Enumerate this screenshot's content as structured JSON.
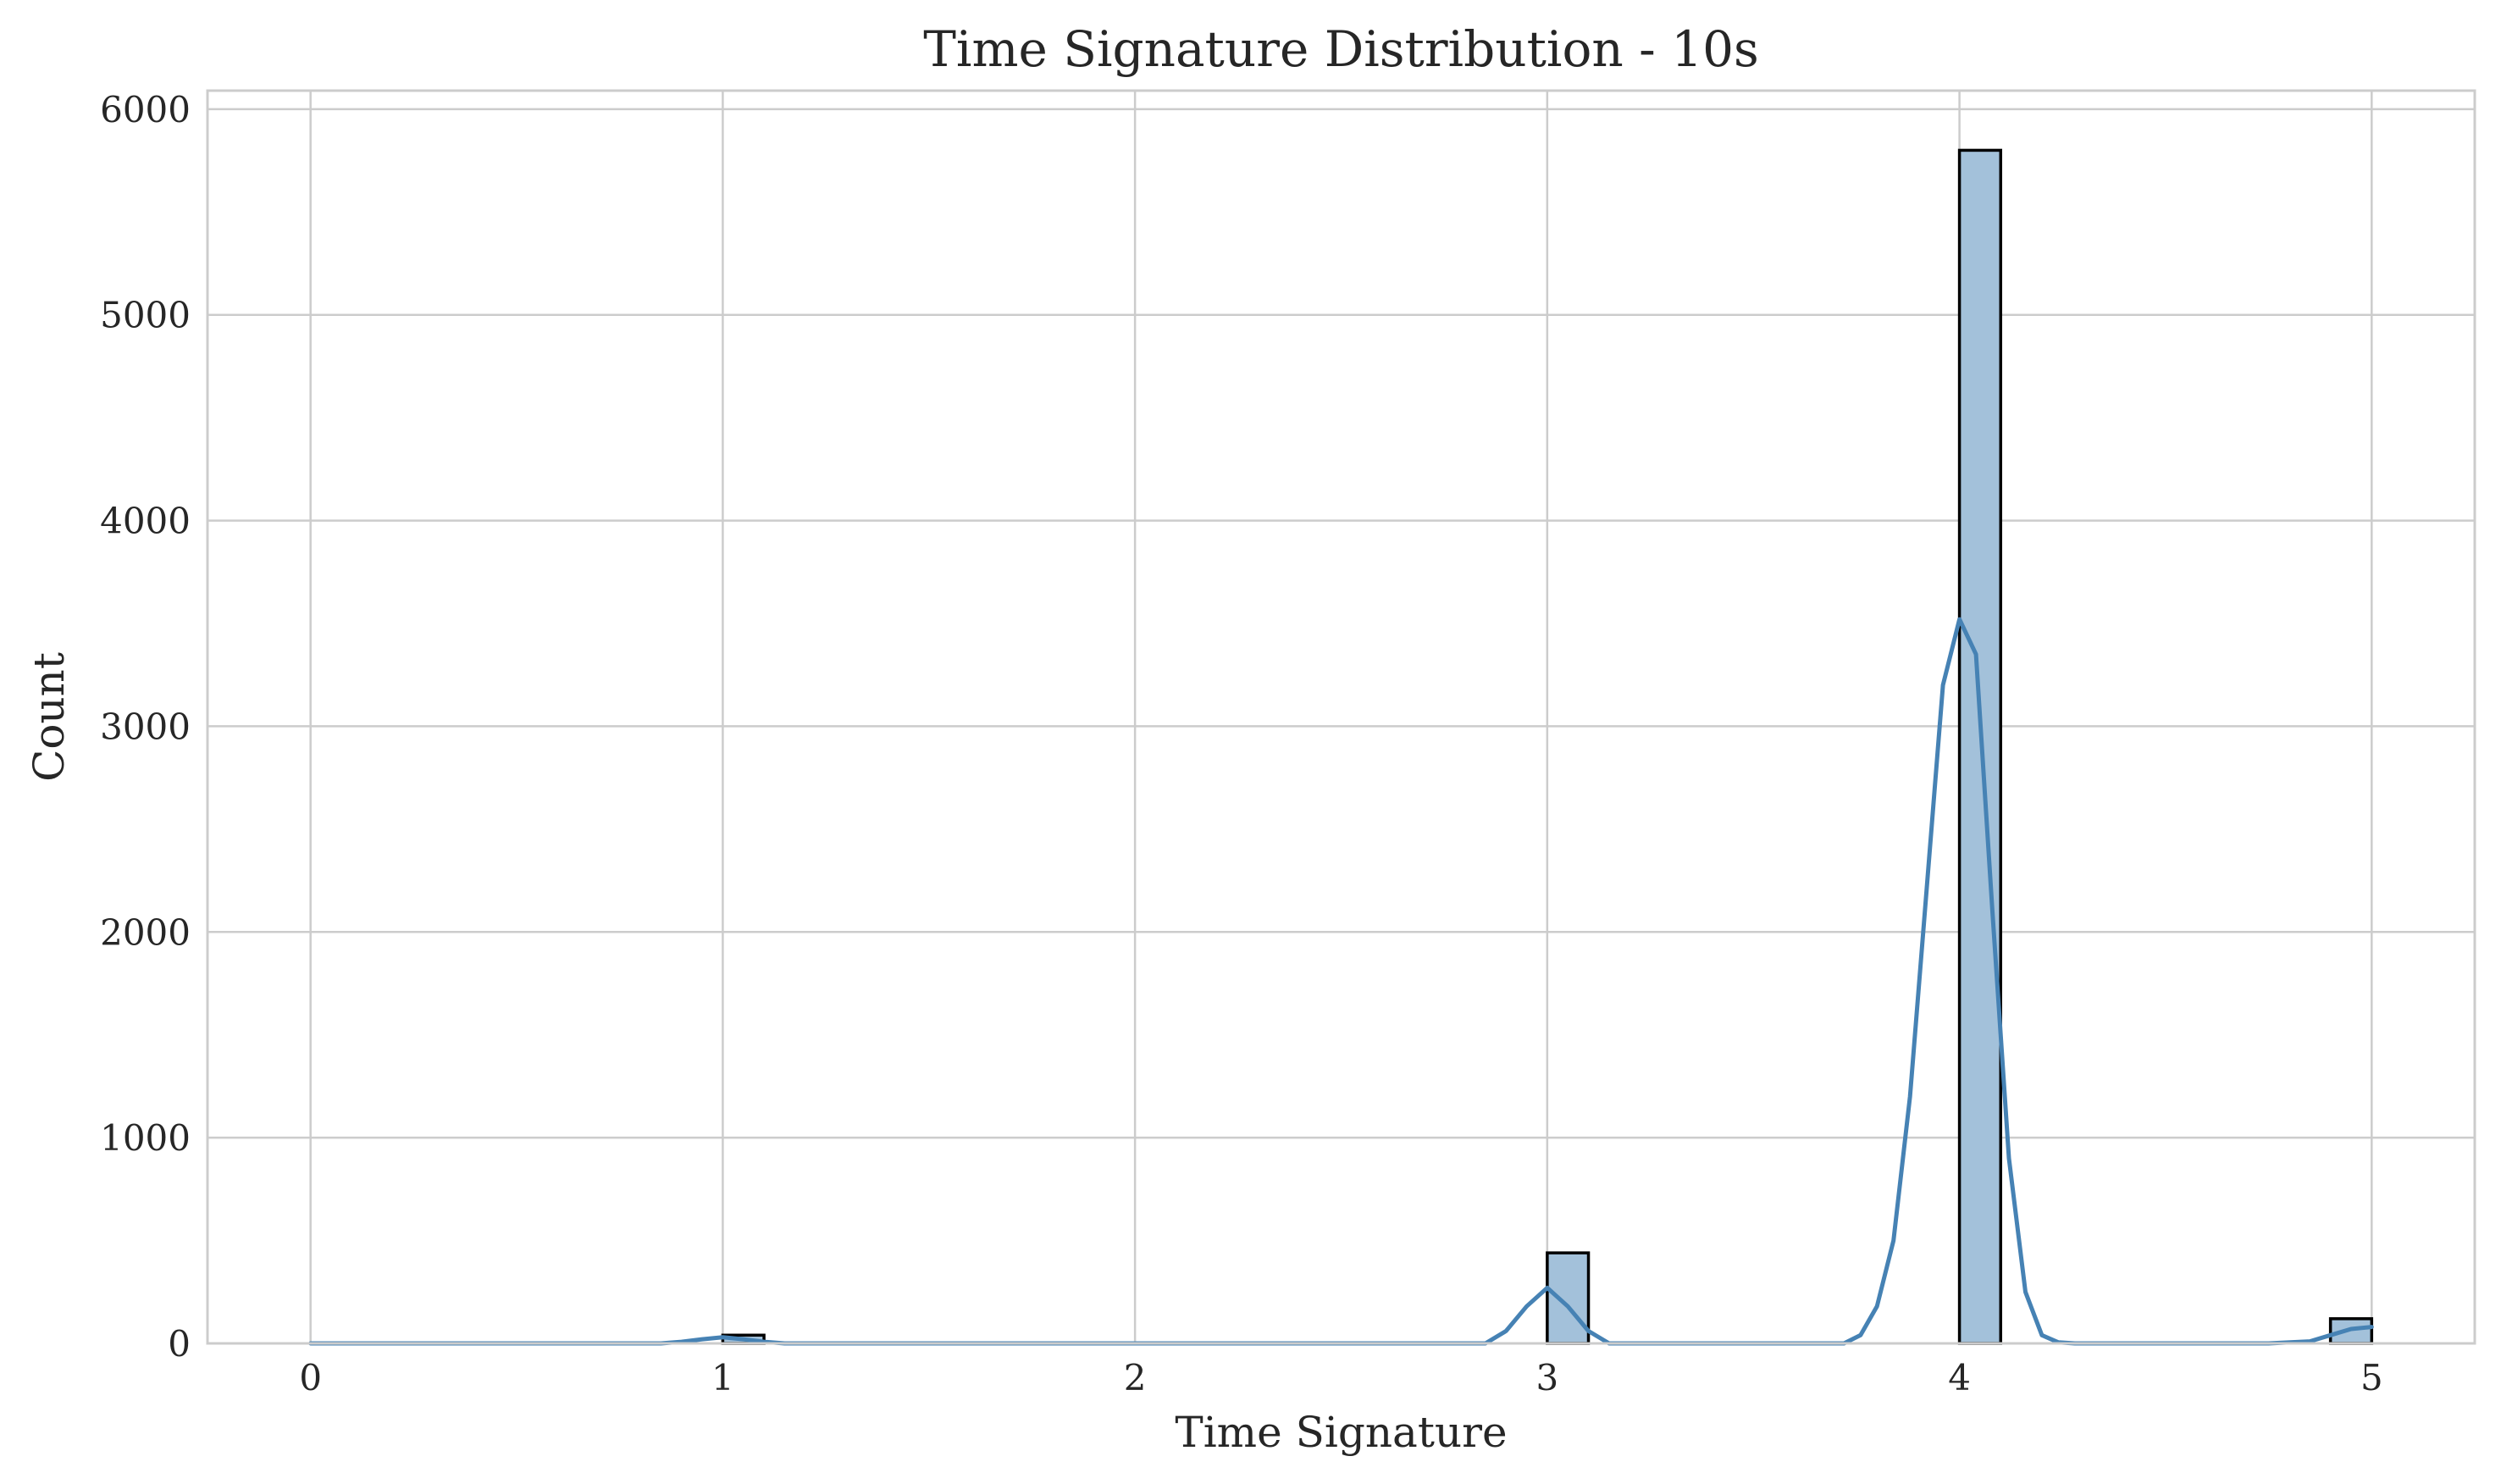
{
  "chart_data": {
    "type": "bar",
    "title": "Time Signature Distribution - 10s",
    "xlabel": "Time Signature",
    "ylabel": "Count",
    "xlim": [
      -0.25,
      5.25
    ],
    "ylim": [
      0,
      6090
    ],
    "xticks": [
      "0",
      "1",
      "2",
      "3",
      "4",
      "5"
    ],
    "yticks": [
      "0",
      "1000",
      "2000",
      "3000",
      "4000",
      "5000",
      "6000"
    ],
    "grid": true,
    "bars": [
      {
        "x0": 0.0,
        "x1": 0.1,
        "value": 0
      },
      {
        "x0": 1.0,
        "x1": 1.1,
        "value": 40
      },
      {
        "x0": 3.0,
        "x1": 3.1,
        "value": 440
      },
      {
        "x0": 4.0,
        "x1": 4.1,
        "value": 5800
      },
      {
        "x0": 4.9,
        "x1": 5.0,
        "value": 120
      }
    ],
    "series": [
      {
        "type": "kde",
        "color": "#4682b4",
        "x": [
          0.0,
          0.85,
          0.9,
          0.95,
          1.0,
          1.05,
          1.1,
          1.15,
          2.85,
          2.9,
          2.95,
          3.0,
          3.05,
          3.1,
          3.15,
          3.72,
          3.76,
          3.8,
          3.84,
          3.88,
          3.92,
          3.96,
          4.0,
          4.04,
          4.08,
          4.12,
          4.16,
          4.2,
          4.24,
          4.28,
          4.75,
          4.85,
          4.9,
          4.95,
          5.0
        ],
        "y": [
          0,
          0,
          8,
          20,
          30,
          20,
          8,
          0,
          0,
          60,
          180,
          270,
          180,
          60,
          0,
          0,
          40,
          180,
          500,
          1200,
          2200,
          3200,
          3520,
          3350,
          2100,
          900,
          250,
          40,
          5,
          0,
          0,
          10,
          40,
          70,
          80
        ]
      }
    ]
  }
}
